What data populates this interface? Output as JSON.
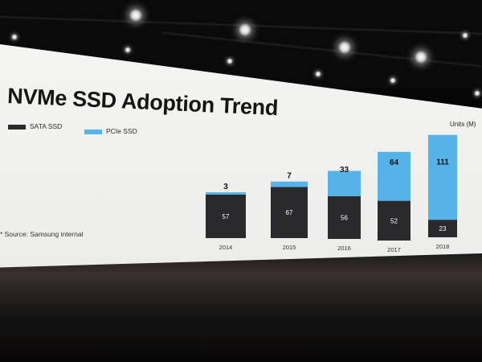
{
  "slide": {
    "title": "NVMe SSD Adoption Trend",
    "source": "* Source: Samsung internal"
  },
  "colors": {
    "sata": "#2a2a2c",
    "pcie": "#55b3ea"
  },
  "chart_data": {
    "type": "bar",
    "stacked": true,
    "title": "NVMe SSD Adoption Trend",
    "units_label": "Units (M)",
    "categories": [
      "2014",
      "2015",
      "2016",
      "2017",
      "2018"
    ],
    "series": [
      {
        "name": "SATA SSD",
        "values": [
          57,
          67,
          56,
          52,
          23
        ]
      },
      {
        "name": "PCIe SSD",
        "values": [
          3,
          7,
          33,
          64,
          111
        ]
      }
    ],
    "xlabel": "",
    "ylabel": "Units (M)",
    "ylim": [
      0,
      140
    ],
    "grid": false,
    "legend": "top-left"
  }
}
